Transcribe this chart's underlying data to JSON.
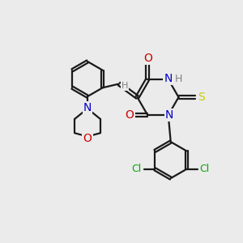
{
  "bg_color": "#ebebeb",
  "bond_color": "#1a1a1a",
  "N_color": "#0000cc",
  "O_color": "#cc0000",
  "S_color": "#cccc00",
  "Cl_color": "#00aa00",
  "H_color": "#808080",
  "line_width": 1.6,
  "font_size": 10,
  "figsize": [
    3.0,
    3.0
  ],
  "dpi": 100,
  "xlim": [
    0,
    10
  ],
  "ylim": [
    0,
    10
  ]
}
